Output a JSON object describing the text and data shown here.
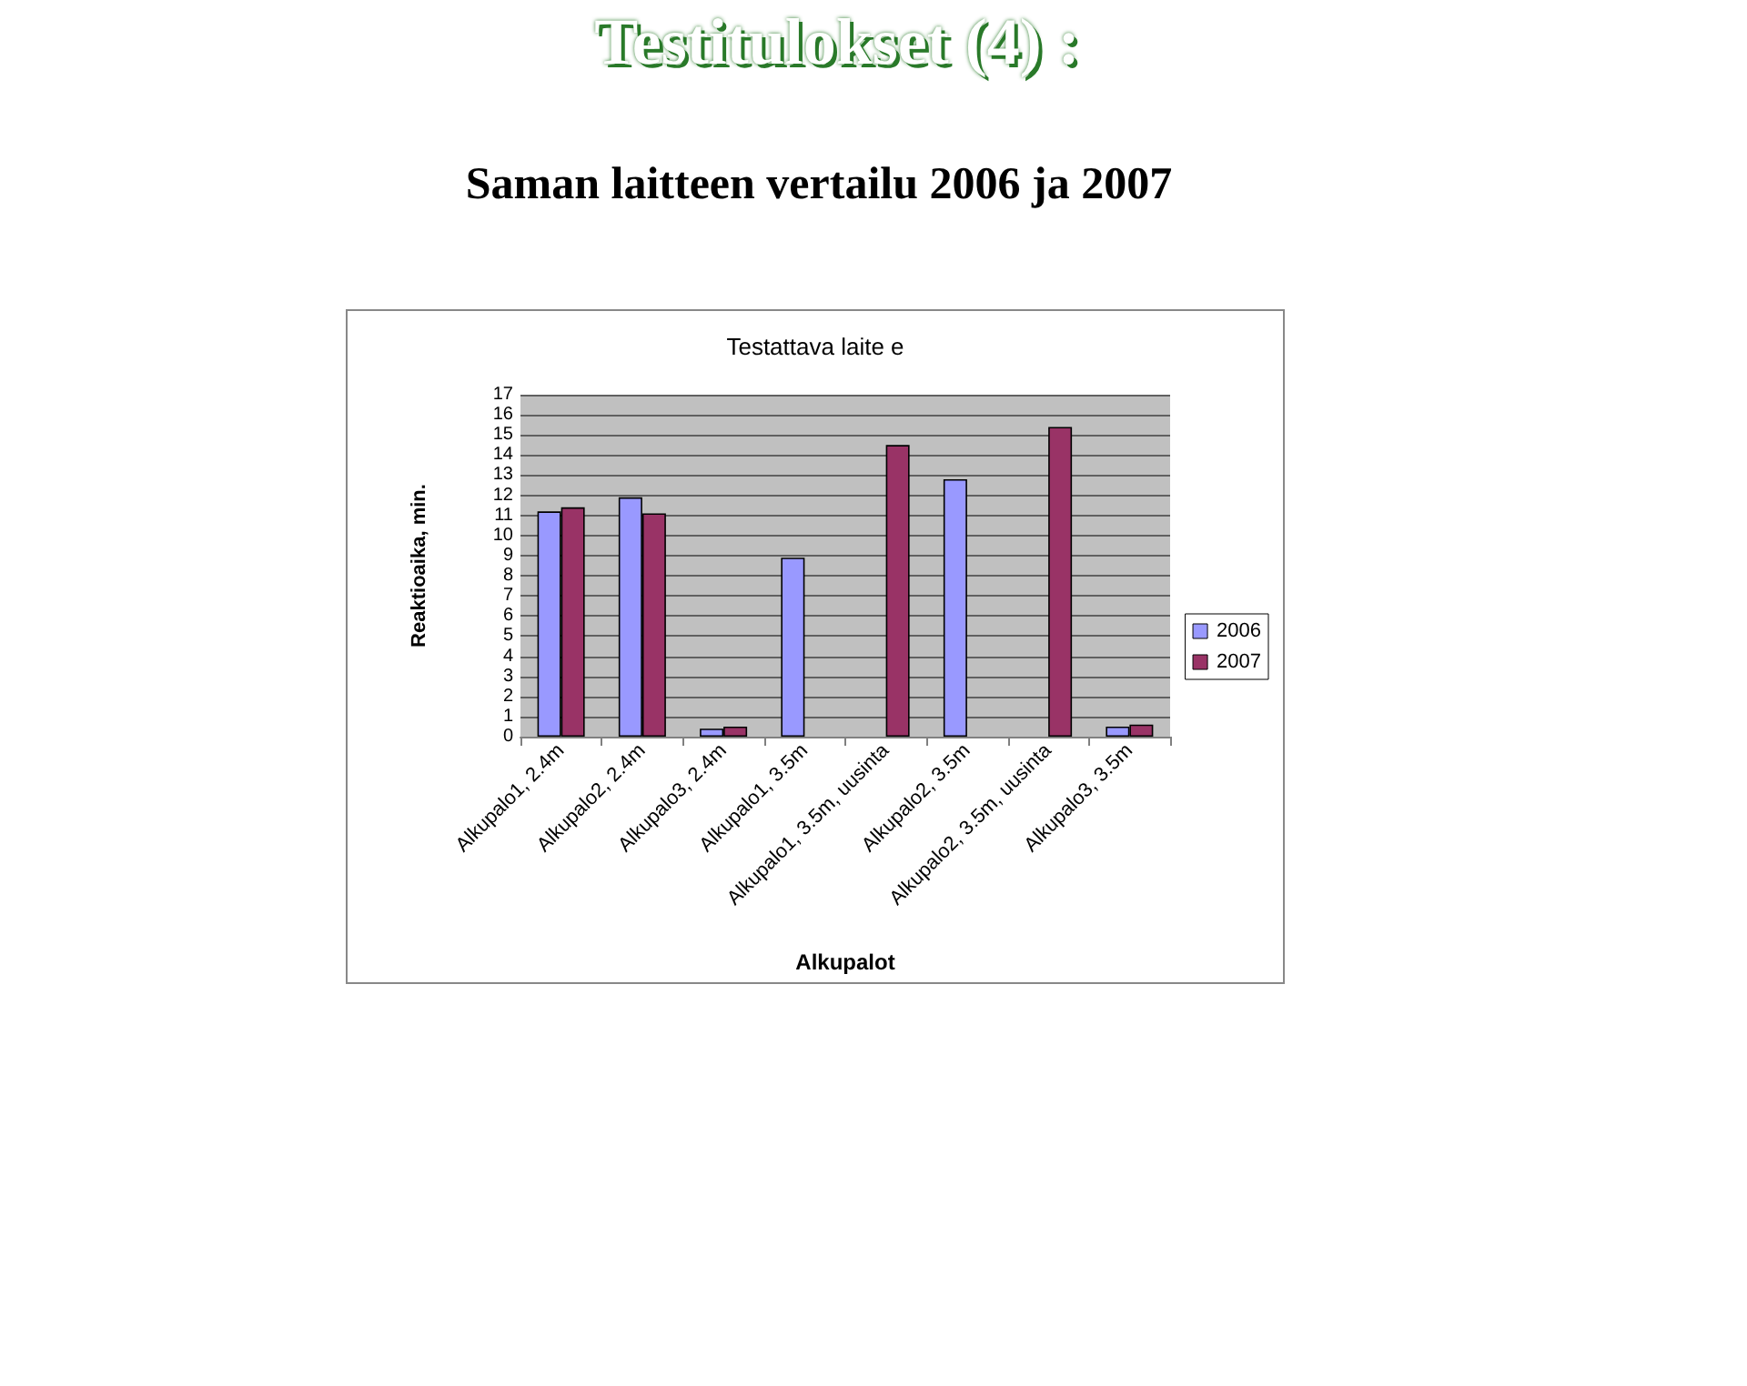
{
  "chart_data": {
    "type": "bar",
    "title": "Testitulokset (4) :",
    "subtitle": "Saman laitteen vertailu 2006 ja 2007",
    "annotations": [
      "Testattava laite e"
    ],
    "xlabel": "Alkupalot",
    "ylabel": "Reaktioaika, min.",
    "categories": [
      "Alkupalo1, 2.4m",
      "Alkupalo2, 2.4m",
      "Alkupalo3, 2.4m",
      "Alkupalo1, 3.5m",
      "Alkupalo1, 3.5m, uusinta",
      "Alkupalo2, 3.5m",
      "Alkupalo2, 3.5m, uusinta",
      "Alkupalo3, 3.5m"
    ],
    "series": [
      {
        "name": "2006",
        "color": "#9999ff",
        "values": [
          11.2,
          11.9,
          0.4,
          8.9,
          null,
          12.8,
          null,
          0.5
        ]
      },
      {
        "name": "2007",
        "color": "#993366",
        "values": [
          11.4,
          11.1,
          0.5,
          null,
          14.5,
          null,
          15.4,
          0.6
        ]
      }
    ],
    "ylim": [
      0,
      17
    ],
    "yticks": [
      0,
      1,
      2,
      3,
      4,
      5,
      6,
      7,
      8,
      9,
      10,
      11,
      12,
      13,
      14,
      15,
      16,
      17
    ],
    "grid": "y",
    "legend": "right"
  }
}
